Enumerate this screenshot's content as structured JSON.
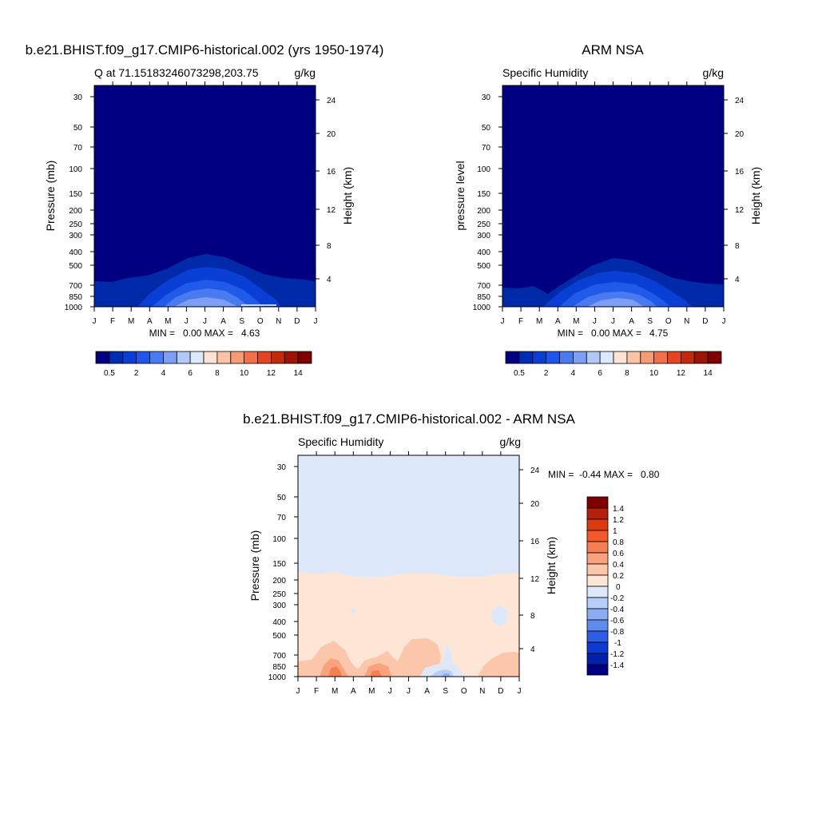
{
  "chart_data": [
    {
      "type": "contour",
      "title": "b.e21.BHIST.f09_g17.CMIP6-historical.002 (yrs 1950-1974)",
      "left_subtitle": "Q at 71.15183246073298,203.75",
      "right_subtitle": "g/kg",
      "ylabel": "Pressure (mb)",
      "ylabel_right": "Height (km)",
      "x_ticks": [
        "J",
        "F",
        "M",
        "A",
        "M",
        "J",
        "J",
        "A",
        "S",
        "O",
        "N",
        "D",
        "J"
      ],
      "y_ticks": [
        "30",
        "50",
        "70",
        "100",
        "150",
        "200",
        "250",
        "300",
        "400",
        "500",
        "700",
        "850",
        "1000"
      ],
      "y_ticks_right": [
        "24",
        "20",
        "16",
        "12",
        "8",
        "4"
      ],
      "min_max": "MIN =   0.00 MAX =   4.63",
      "min_value": 0.0,
      "max_value": 4.63,
      "colorbar": {
        "orientation": "horizontal",
        "labels": [
          "0.5",
          "2",
          "4",
          "6",
          "8",
          "10",
          "12",
          "14"
        ],
        "colors": [
          "#000080",
          "#002db4",
          "#0a3fd6",
          "#1e56ea",
          "#4a7af0",
          "#7c9ef4",
          "#b2c8f8",
          "#ddeafd",
          "#fde3d3",
          "#fbc3a6",
          "#f79b77",
          "#f1704a",
          "#e54420",
          "#c32a0a",
          "#9b1405",
          "#800000"
        ]
      }
    },
    {
      "type": "contour",
      "title": "ARM NSA",
      "left_subtitle": "Specific Humidity",
      "right_subtitle": "g/kg",
      "ylabel": "pressure level",
      "ylabel_right": "Height (km)",
      "x_ticks": [
        "J",
        "F",
        "M",
        "A",
        "M",
        "J",
        "J",
        "A",
        "S",
        "O",
        "N",
        "D",
        "J"
      ],
      "y_ticks": [
        "30",
        "50",
        "70",
        "100",
        "150",
        "200",
        "250",
        "300",
        "400",
        "500",
        "700",
        "850",
        "1000"
      ],
      "y_ticks_right": [
        "24",
        "20",
        "16",
        "12",
        "8",
        "4"
      ],
      "min_max": "MIN =   0.00 MAX =   4.75",
      "min_value": 0.0,
      "max_value": 4.75,
      "colorbar": {
        "orientation": "horizontal",
        "labels": [
          "0.5",
          "2",
          "4",
          "6",
          "8",
          "10",
          "12",
          "14"
        ]
      }
    },
    {
      "type": "contour",
      "title": "b.e21.BHIST.f09_g17.CMIP6-historical.002 - ARM NSA",
      "left_subtitle": "Specific Humidity",
      "right_subtitle": "g/kg",
      "ylabel": "Pressure (mb)",
      "ylabel_right": "Height (km)",
      "x_ticks": [
        "J",
        "F",
        "M",
        "A",
        "M",
        "J",
        "J",
        "A",
        "S",
        "O",
        "N",
        "D",
        "J"
      ],
      "y_ticks": [
        "30",
        "50",
        "70",
        "100",
        "150",
        "200",
        "250",
        "300",
        "400",
        "500",
        "700",
        "850",
        "1000"
      ],
      "y_ticks_right": [
        "24",
        "20",
        "16",
        "12",
        "8",
        "4"
      ],
      "min_max": "MIN =  -0.44 MAX =   0.80",
      "min_value": -0.44,
      "max_value": 0.8,
      "colorbar": {
        "orientation": "vertical",
        "labels": [
          "1.4",
          "1.2",
          "1",
          "0.8",
          "0.6",
          "0.4",
          "0.2",
          "0",
          "-0.2",
          "-0.4",
          "-0.6",
          "-0.8",
          "-1",
          "-1.2",
          "-1.4"
        ],
        "colors": [
          "#800000",
          "#b51f0b",
          "#dc3b12",
          "#f25a2c",
          "#f77d52",
          "#f9a27e",
          "#fcc6ab",
          "#fde6d6",
          "#dde9fb",
          "#b6cdf8",
          "#8cadf3",
          "#5f8aee",
          "#2f5ee6",
          "#0c3ad2",
          "#0220a8",
          "#000080"
        ]
      }
    }
  ]
}
